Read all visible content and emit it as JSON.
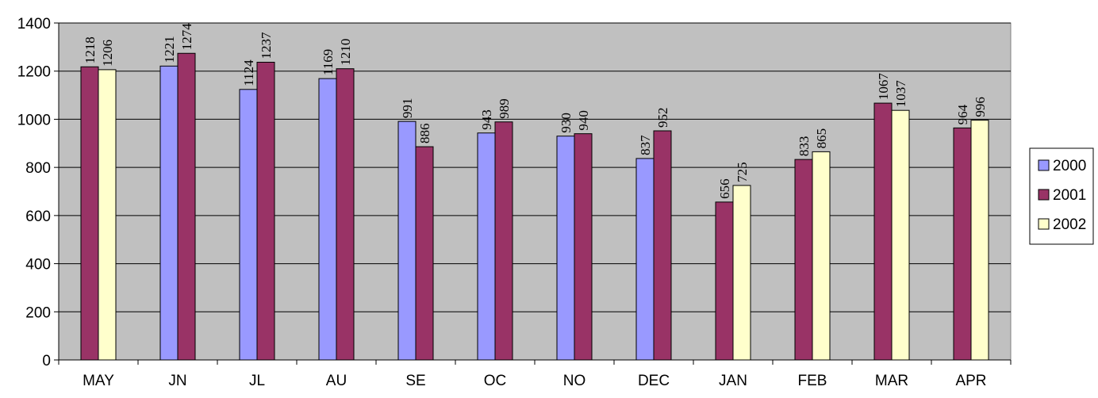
{
  "chart_data": {
    "type": "bar",
    "title": "",
    "xlabel": "",
    "ylabel": "",
    "ylim": [
      0,
      1400
    ],
    "yticks": [
      0,
      200,
      400,
      600,
      800,
      1000,
      1200,
      1400
    ],
    "grid": true,
    "legend_position": "right",
    "plot_background": "#c0c0c0",
    "categories": [
      "MAY",
      "JN",
      "JL",
      "AU",
      "SE",
      "OC",
      "NO",
      "DEC",
      "JAN",
      "FEB",
      "MAR",
      "APR"
    ],
    "series": [
      {
        "name": "2000",
        "color": "#9999ff",
        "values": [
          null,
          1221,
          1124,
          1169,
          991,
          943,
          930,
          837,
          null,
          null,
          null,
          null
        ]
      },
      {
        "name": "2001",
        "color": "#993366",
        "values": [
          1218,
          1274,
          1237,
          1210,
          886,
          989,
          940,
          952,
          656,
          833,
          1067,
          964
        ]
      },
      {
        "name": "2002",
        "color": "#ffffcc",
        "values": [
          1206,
          null,
          null,
          null,
          null,
          null,
          null,
          null,
          725,
          865,
          1037,
          996
        ]
      }
    ]
  }
}
